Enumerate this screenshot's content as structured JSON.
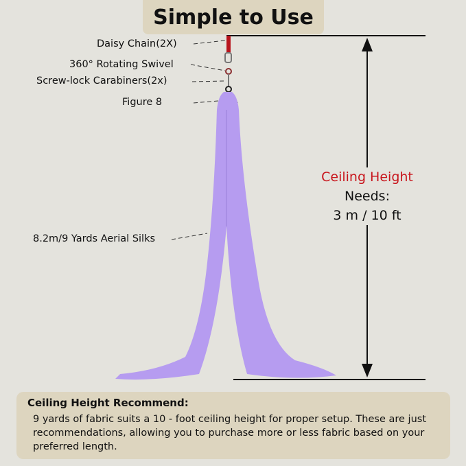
{
  "title": "Simple to Use",
  "parts": [
    {
      "label": "Daisy Chain(2X)"
    },
    {
      "label": "360° Rotating Swivel"
    },
    {
      "label": "Screw-lock Carabiners(2x)"
    },
    {
      "label": "Figure 8"
    },
    {
      "label": "8.2m/9 Yards Aerial Silks"
    }
  ],
  "ceiling": {
    "heading": "Ceiling Height",
    "needs": "Needs:",
    "value": "3 m / 10 ft",
    "heading_color": "#c8161d"
  },
  "colors": {
    "silk": "#b69cf0",
    "daisy_chain": "#b8141c",
    "background": "#e4e3dd",
    "panel": "#ddd5bf"
  },
  "note": {
    "heading": "Ceiling Height Recommend:",
    "body": "9 yards of fabric suits a 10 - foot ceiling height for proper setup. These are just recommendations, allowing you to purchase more or less fabric based on your preferred length."
  }
}
